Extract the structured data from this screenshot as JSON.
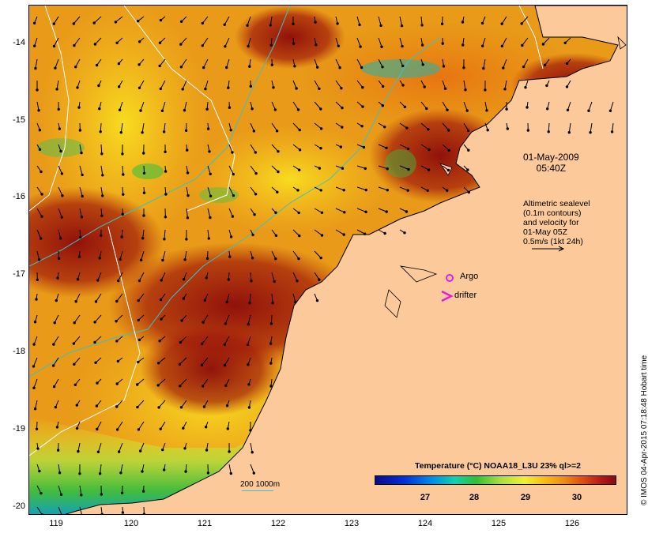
{
  "map": {
    "date_line1": "01-May-2009",
    "date_line2": "05:40Z",
    "altimetry_lines": [
      "Altimetric sealevel",
      "(0.1m contours)",
      "and velocity for",
      "01-May 05Z",
      "0.5m/s (1kt 24h)"
    ],
    "legend_argo": "Argo",
    "legend_drifter": "drifter",
    "scale_label": "200 1000m",
    "colorbar_title": "Temperature (°C) NOAA18_L3U 23% ql>=2",
    "colorbar_ticks": [
      "27",
      "28",
      "29",
      "30"
    ],
    "credit": "© IMOS 04-Apr-2015 07:18:48 Hobart time",
    "lat_ticks": [
      "-14",
      "-15",
      "-16",
      "-17",
      "-18",
      "-19",
      "-20"
    ],
    "lon_ticks": [
      "119",
      "120",
      "121",
      "122",
      "123",
      "124",
      "125",
      "126"
    ],
    "colors": {
      "land": "#fbc99a",
      "argo": "#e020e0",
      "drifter": "#e020e0",
      "isobath": "#40c0c0"
    }
  }
}
